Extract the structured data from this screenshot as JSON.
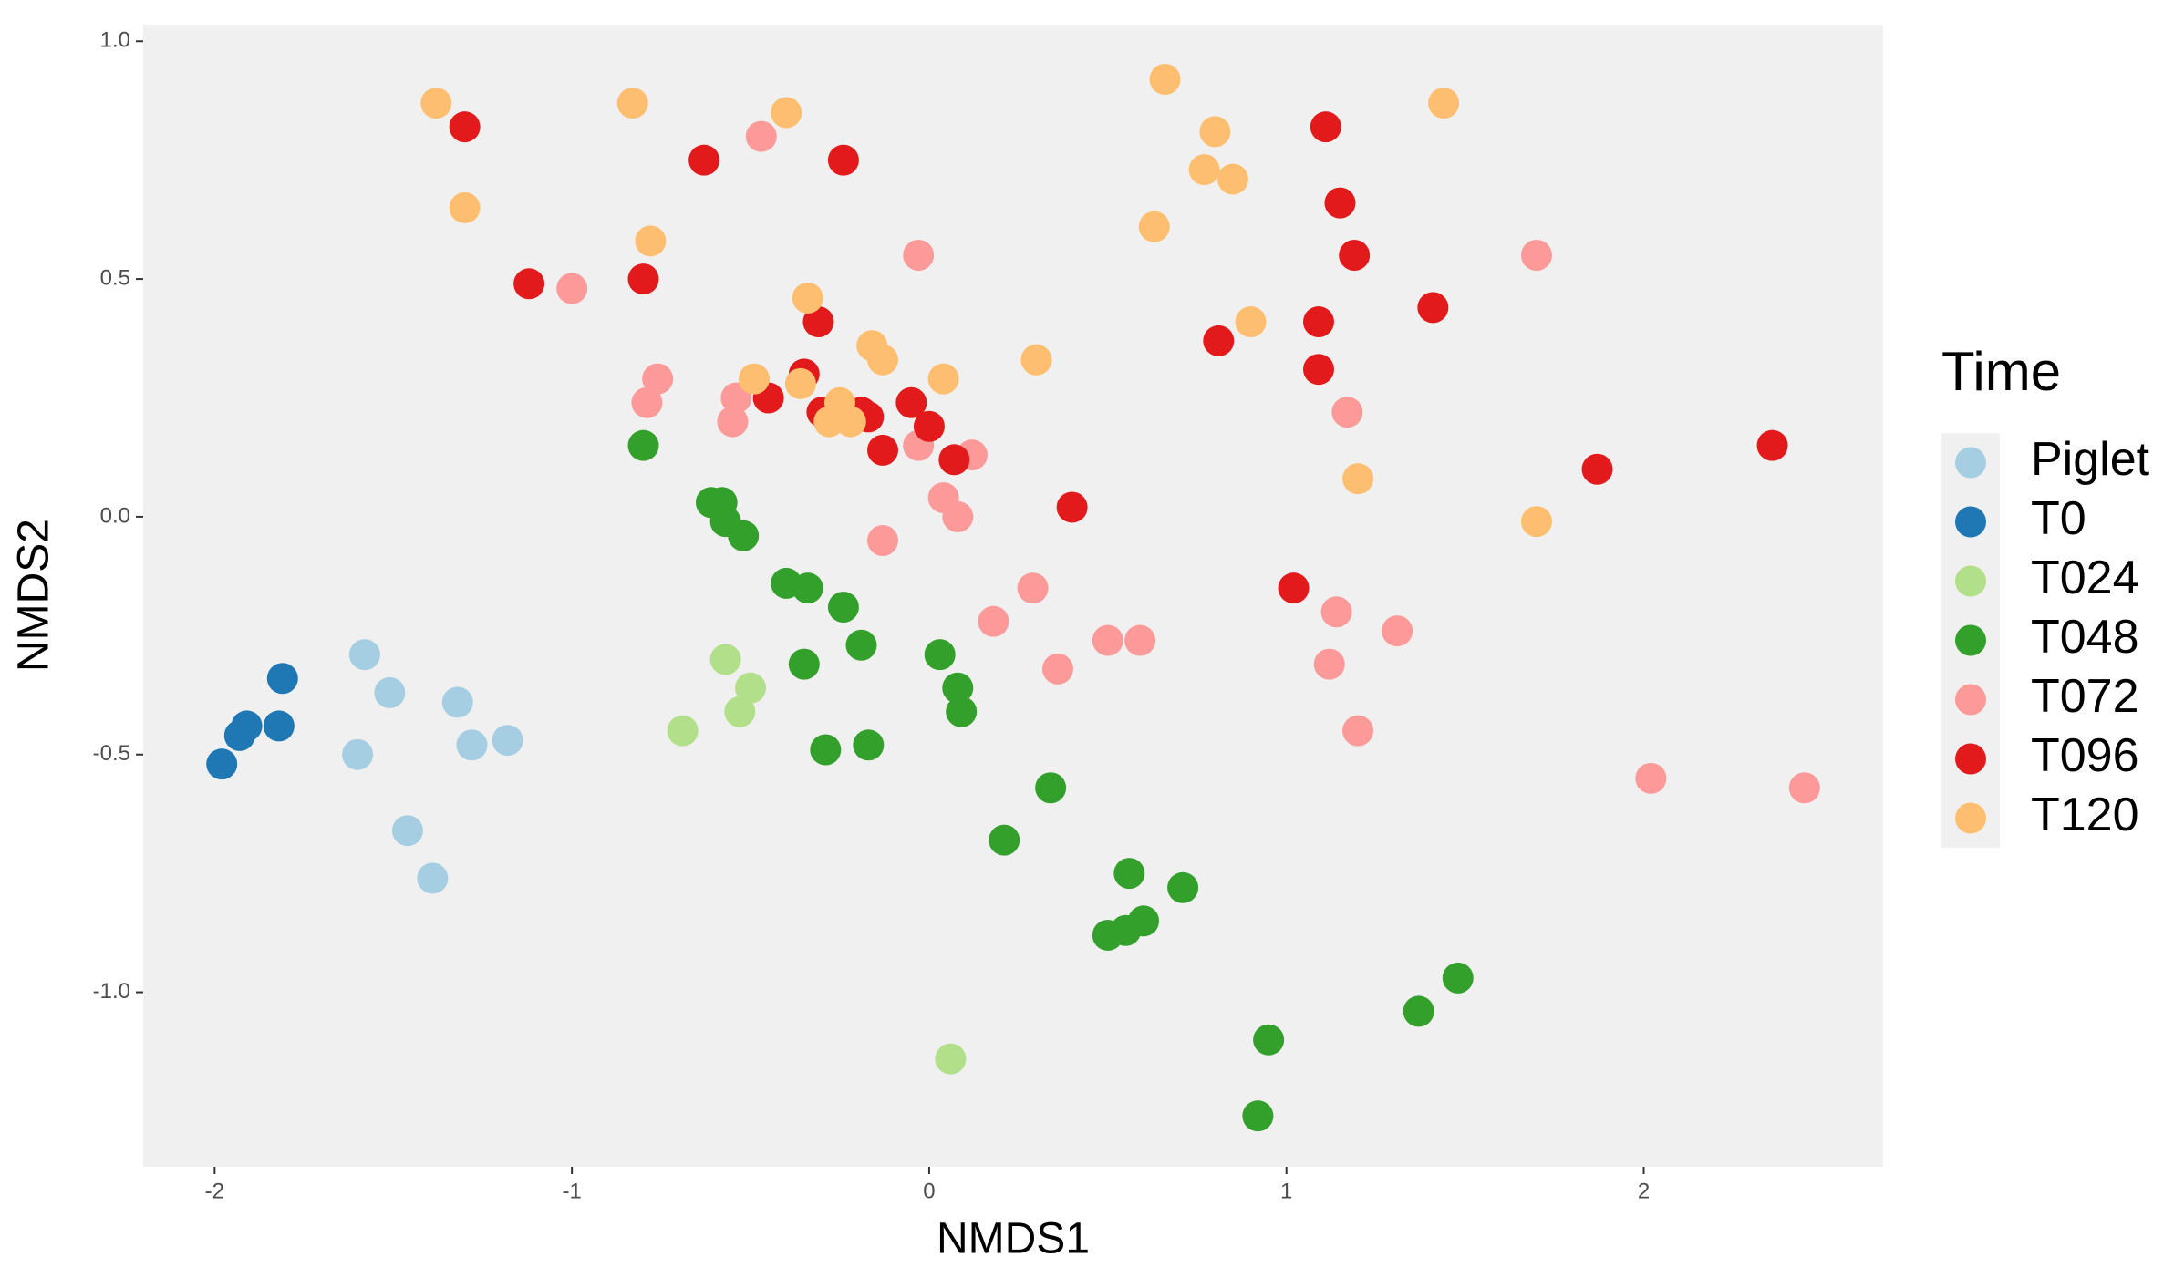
{
  "chart_data": {
    "type": "scatter",
    "x_label": "NMDS1",
    "y_label": "NMDS2",
    "legend_title": "Time",
    "legend_position": "right",
    "grid": false,
    "xlim": [
      -2.2,
      2.67
    ],
    "ylim": [
      -1.367,
      1.035
    ],
    "xticks": [
      -2,
      -1,
      0,
      1,
      2
    ],
    "yticks": [
      {
        "value": -1.0,
        "label": "-1.0"
      },
      -0.5,
      {
        "value": 0.0,
        "label": "0.0"
      },
      0.5,
      {
        "value": 1.0,
        "label": "1.0"
      }
    ],
    "series": [
      {
        "name": "Piglet",
        "color": "#a6cee3",
        "x": [
          -1.58,
          -1.51,
          -1.32,
          -1.6,
          -1.28,
          -1.18,
          -1.46,
          -1.39
        ],
        "values": [
          -0.29,
          -0.37,
          -0.39,
          -0.5,
          -0.48,
          -0.47,
          -0.66,
          -0.76
        ]
      },
      {
        "name": "T0",
        "color": "#1f78b4",
        "x": [
          -1.81,
          -1.82,
          -1.91,
          -1.93,
          -1.98
        ],
        "values": [
          -0.34,
          -0.44,
          -0.44,
          -0.46,
          -0.52
        ]
      },
      {
        "name": "T024",
        "color": "#b2df8a",
        "x": [
          -0.57,
          -0.5,
          -0.53,
          -0.69,
          0.06
        ],
        "values": [
          -0.3,
          -0.36,
          -0.41,
          -0.45,
          -1.14
        ]
      },
      {
        "name": "T048",
        "color": "#33a02c",
        "x": [
          -0.8,
          -0.61,
          -0.58,
          -0.57,
          -0.52,
          -0.4,
          -0.34,
          -0.24,
          -0.19,
          -0.35,
          -0.29,
          -0.17,
          0.03,
          0.08,
          0.09,
          0.34,
          0.21,
          0.56,
          0.71,
          0.6,
          0.55,
          0.5,
          1.48,
          1.37,
          0.95,
          0.92
        ],
        "values": [
          0.15,
          0.03,
          0.03,
          -0.01,
          -0.04,
          -0.14,
          -0.15,
          -0.19,
          -0.27,
          -0.31,
          -0.49,
          -0.48,
          -0.29,
          -0.36,
          -0.41,
          -0.57,
          -0.68,
          -0.75,
          -0.78,
          -0.85,
          -0.87,
          -0.88,
          -0.97,
          -1.04,
          -1.1,
          -1.26
        ]
      },
      {
        "name": "T072",
        "color": "#fb9a99",
        "x": [
          -0.47,
          -1.0,
          -0.03,
          -0.76,
          -0.79,
          -0.54,
          -0.55,
          -0.03,
          0.12,
          0.04,
          0.08,
          -0.13,
          0.18,
          0.29,
          0.36,
          0.5,
          0.59,
          1.17,
          1.14,
          1.12,
          1.2,
          1.31,
          1.7,
          2.02,
          2.45
        ],
        "values": [
          0.8,
          0.48,
          0.55,
          0.29,
          0.24,
          0.25,
          0.2,
          0.15,
          0.13,
          0.04,
          0.0,
          -0.05,
          -0.22,
          -0.15,
          -0.32,
          -0.26,
          -0.26,
          0.22,
          -0.2,
          -0.31,
          -0.45,
          -0.24,
          0.55,
          -0.55,
          -0.57
        ]
      },
      {
        "name": "T096",
        "color": "#e31a1c",
        "x": [
          -1.3,
          -0.63,
          -0.24,
          -1.12,
          -0.8,
          -0.31,
          -0.35,
          -0.45,
          -0.3,
          -0.19,
          -0.17,
          -0.05,
          0.0,
          0.07,
          -0.13,
          0.4,
          1.11,
          1.15,
          1.19,
          1.09,
          0.81,
          1.09,
          1.41,
          1.02,
          1.87,
          2.36
        ],
        "values": [
          0.82,
          0.75,
          0.75,
          0.49,
          0.5,
          0.41,
          0.3,
          0.25,
          0.22,
          0.22,
          0.21,
          0.24,
          0.19,
          0.12,
          0.14,
          0.02,
          0.82,
          0.66,
          0.55,
          0.41,
          0.37,
          0.31,
          0.44,
          -0.15,
          0.1,
          0.15
        ]
      },
      {
        "name": "T120",
        "color": "#fdbf6f",
        "x": [
          -1.38,
          -0.83,
          -0.4,
          -1.3,
          -0.78,
          -0.34,
          -0.49,
          -0.36,
          -0.25,
          -0.28,
          -0.22,
          -0.16,
          -0.13,
          0.04,
          0.3,
          0.66,
          0.8,
          0.77,
          0.85,
          0.63,
          0.9,
          1.44,
          1.2,
          1.7
        ],
        "values": [
          0.87,
          0.87,
          0.85,
          0.65,
          0.58,
          0.46,
          0.29,
          0.28,
          0.24,
          0.2,
          0.2,
          0.36,
          0.33,
          0.29,
          0.33,
          0.92,
          0.81,
          0.73,
          0.71,
          0.61,
          0.41,
          0.87,
          0.08,
          -0.01
        ]
      }
    ]
  }
}
